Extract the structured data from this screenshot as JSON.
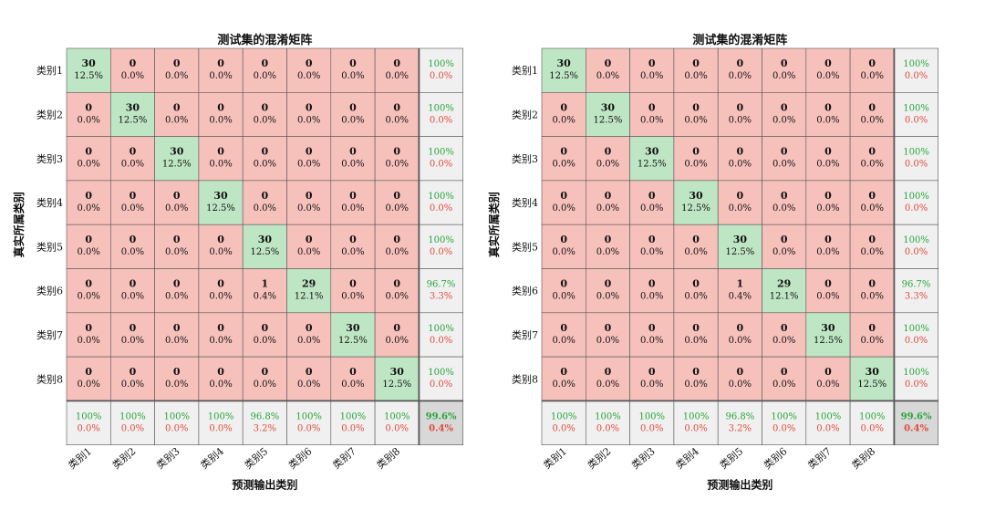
{
  "chart_data": [
    {
      "type": "heatmap",
      "title": "测试集的混淆矩阵",
      "xlabel": "预测输出类别",
      "ylabel": "真实所属类别",
      "classes": [
        "类别1",
        "类别2",
        "类别3",
        "类别4",
        "类别5",
        "类别6",
        "类别7",
        "类别8"
      ],
      "matrix": [
        [
          30,
          0,
          0,
          0,
          0,
          0,
          0,
          0
        ],
        [
          0,
          30,
          0,
          0,
          0,
          0,
          0,
          0
        ],
        [
          0,
          0,
          30,
          0,
          0,
          0,
          0,
          0
        ],
        [
          0,
          0,
          0,
          30,
          0,
          0,
          0,
          0
        ],
        [
          0,
          0,
          0,
          0,
          30,
          0,
          0,
          0
        ],
        [
          0,
          0,
          0,
          0,
          1,
          29,
          0,
          0
        ],
        [
          0,
          0,
          0,
          0,
          0,
          0,
          30,
          0
        ],
        [
          0,
          0,
          0,
          0,
          0,
          0,
          0,
          30
        ]
      ],
      "cell_percent": [
        [
          "12.5%",
          "0.0%",
          "0.0%",
          "0.0%",
          "0.0%",
          "0.0%",
          "0.0%",
          "0.0%"
        ],
        [
          "0.0%",
          "12.5%",
          "0.0%",
          "0.0%",
          "0.0%",
          "0.0%",
          "0.0%",
          "0.0%"
        ],
        [
          "0.0%",
          "0.0%",
          "12.5%",
          "0.0%",
          "0.0%",
          "0.0%",
          "0.0%",
          "0.0%"
        ],
        [
          "0.0%",
          "0.0%",
          "0.0%",
          "12.5%",
          "0.0%",
          "0.0%",
          "0.0%",
          "0.0%"
        ],
        [
          "0.0%",
          "0.0%",
          "0.0%",
          "0.0%",
          "12.5%",
          "0.0%",
          "0.0%",
          "0.0%"
        ],
        [
          "0.0%",
          "0.0%",
          "0.0%",
          "0.0%",
          "0.4%",
          "12.1%",
          "0.0%",
          "0.0%"
        ],
        [
          "0.0%",
          "0.0%",
          "0.0%",
          "0.0%",
          "0.0%",
          "0.0%",
          "12.5%",
          "0.0%"
        ],
        [
          "0.0%",
          "0.0%",
          "0.0%",
          "0.0%",
          "0.0%",
          "0.0%",
          "0.0%",
          "12.5%"
        ]
      ],
      "row_summary": [
        [
          "100%",
          "0.0%"
        ],
        [
          "100%",
          "0.0%"
        ],
        [
          "100%",
          "0.0%"
        ],
        [
          "100%",
          "0.0%"
        ],
        [
          "100%",
          "0.0%"
        ],
        [
          "96.7%",
          "3.3%"
        ],
        [
          "100%",
          "0.0%"
        ],
        [
          "100%",
          "0.0%"
        ]
      ],
      "col_summary": [
        [
          "100%",
          "0.0%"
        ],
        [
          "100%",
          "0.0%"
        ],
        [
          "100%",
          "0.0%"
        ],
        [
          "100%",
          "0.0%"
        ],
        [
          "96.8%",
          "3.2%"
        ],
        [
          "100%",
          "0.0%"
        ],
        [
          "100%",
          "0.0%"
        ],
        [
          "100%",
          "0.0%"
        ]
      ],
      "overall": [
        "99.6%",
        "0.4%"
      ]
    },
    {
      "type": "heatmap",
      "title": "测试集的混淆矩阵",
      "xlabel": "预测输出类别",
      "ylabel": "真实所属类别",
      "classes": [
        "类别1",
        "类别2",
        "类别3",
        "类别4",
        "类别5",
        "类别6",
        "类别7",
        "类别8"
      ],
      "matrix": [
        [
          30,
          0,
          0,
          0,
          0,
          0,
          0,
          0
        ],
        [
          0,
          30,
          0,
          0,
          0,
          0,
          0,
          0
        ],
        [
          0,
          0,
          30,
          0,
          0,
          0,
          0,
          0
        ],
        [
          0,
          0,
          0,
          30,
          0,
          0,
          0,
          0
        ],
        [
          0,
          0,
          0,
          0,
          30,
          0,
          0,
          0
        ],
        [
          0,
          0,
          0,
          0,
          1,
          29,
          0,
          0
        ],
        [
          0,
          0,
          0,
          0,
          0,
          0,
          30,
          0
        ],
        [
          0,
          0,
          0,
          0,
          0,
          0,
          0,
          30
        ]
      ],
      "cell_percent": [
        [
          "12.5%",
          "0.0%",
          "0.0%",
          "0.0%",
          "0.0%",
          "0.0%",
          "0.0%",
          "0.0%"
        ],
        [
          "0.0%",
          "12.5%",
          "0.0%",
          "0.0%",
          "0.0%",
          "0.0%",
          "0.0%",
          "0.0%"
        ],
        [
          "0.0%",
          "0.0%",
          "12.5%",
          "0.0%",
          "0.0%",
          "0.0%",
          "0.0%",
          "0.0%"
        ],
        [
          "0.0%",
          "0.0%",
          "0.0%",
          "12.5%",
          "0.0%",
          "0.0%",
          "0.0%",
          "0.0%"
        ],
        [
          "0.0%",
          "0.0%",
          "0.0%",
          "0.0%",
          "12.5%",
          "0.0%",
          "0.0%",
          "0.0%"
        ],
        [
          "0.0%",
          "0.0%",
          "0.0%",
          "0.0%",
          "0.4%",
          "12.1%",
          "0.0%",
          "0.0%"
        ],
        [
          "0.0%",
          "0.0%",
          "0.0%",
          "0.0%",
          "0.0%",
          "0.0%",
          "12.5%",
          "0.0%"
        ],
        [
          "0.0%",
          "0.0%",
          "0.0%",
          "0.0%",
          "0.0%",
          "0.0%",
          "0.0%",
          "12.5%"
        ]
      ],
      "row_summary": [
        [
          "100%",
          "0.0%"
        ],
        [
          "100%",
          "0.0%"
        ],
        [
          "100%",
          "0.0%"
        ],
        [
          "100%",
          "0.0%"
        ],
        [
          "100%",
          "0.0%"
        ],
        [
          "96.7%",
          "3.3%"
        ],
        [
          "100%",
          "0.0%"
        ],
        [
          "100%",
          "0.0%"
        ]
      ],
      "col_summary": [
        [
          "100%",
          "0.0%"
        ],
        [
          "100%",
          "0.0%"
        ],
        [
          "100%",
          "0.0%"
        ],
        [
          "100%",
          "0.0%"
        ],
        [
          "96.8%",
          "3.2%"
        ],
        [
          "100%",
          "0.0%"
        ],
        [
          "100%",
          "0.0%"
        ],
        [
          "100%",
          "0.0%"
        ]
      ],
      "overall": [
        "99.6%",
        "0.4%"
      ]
    }
  ],
  "colors": {
    "correct": "#bfe6c4",
    "incorrect": "#f6c0bb",
    "summary": "#f0f0f0",
    "overall": "#d8d8d8",
    "green_text": "#27a639",
    "red_text": "#e04a3a",
    "grid_line": "#555555",
    "text": "#111111"
  }
}
